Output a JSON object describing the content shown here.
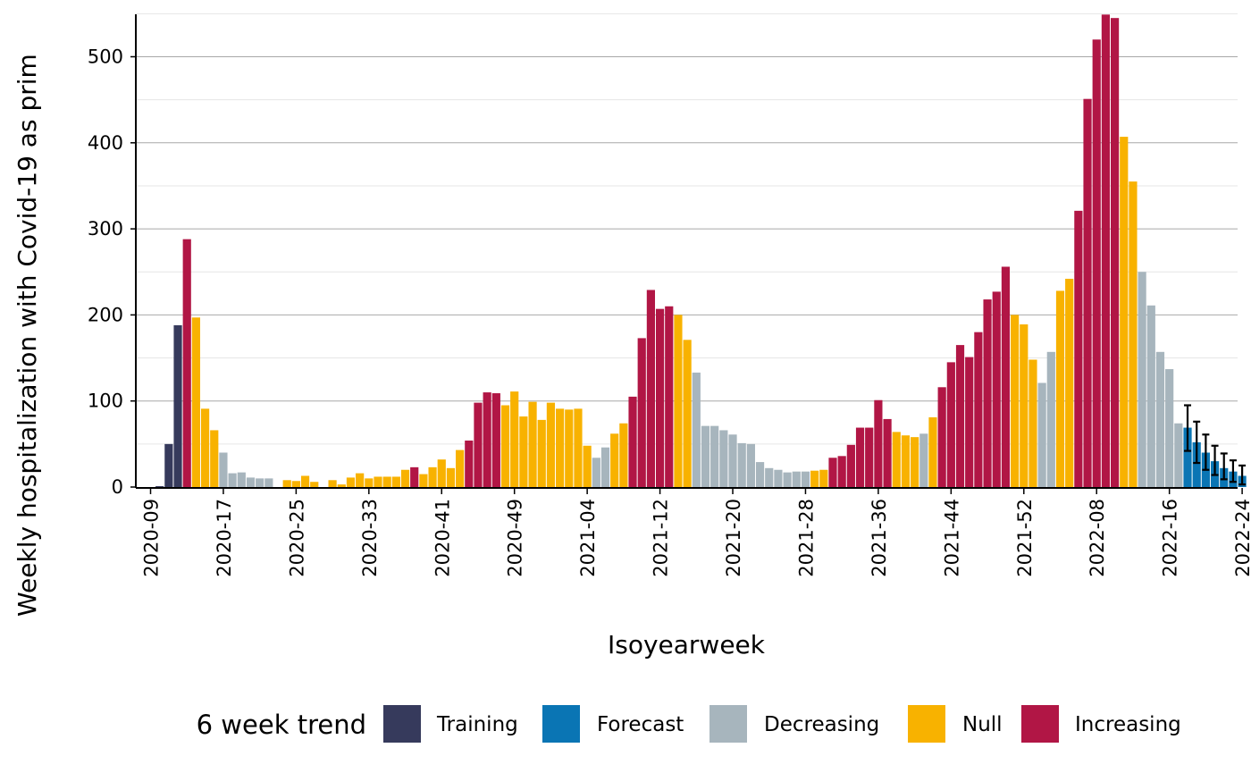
{
  "chart_data": {
    "type": "bar",
    "xlabel": "Isoyearweek",
    "ylabel": "Weekly hospitalization with Covid-19 as prim",
    "ylim": [
      0,
      550
    ],
    "yticks": [
      0,
      100,
      200,
      300,
      400,
      500
    ],
    "grid": true,
    "legend": {
      "title": "6 week trend",
      "placement": "bottom",
      "entries": [
        "Training",
        "Forecast",
        "Decreasing",
        "Null",
        "Increasing"
      ]
    },
    "colors": {
      "Training": "#363a5c",
      "Forecast": "#0a75b4",
      "Decreasing": "#a7b5bd",
      "Null": "#f8b200",
      "Increasing": "#b11645"
    },
    "x_tick_labels": [
      "2020-09",
      "2020-17",
      "2020-25",
      "2020-33",
      "2020-41",
      "2020-49",
      "2021-04",
      "2021-12",
      "2021-20",
      "2021-28",
      "2021-36",
      "2021-44",
      "2021-52",
      "2022-08",
      "2022-16",
      "2022-24"
    ],
    "weeks": [
      "2020-09",
      "2020-10",
      "2020-11",
      "2020-12",
      "2020-13",
      "2020-14",
      "2020-15",
      "2020-16",
      "2020-17",
      "2020-18",
      "2020-19",
      "2020-20",
      "2020-21",
      "2020-22",
      "2020-23",
      "2020-24",
      "2020-25",
      "2020-26",
      "2020-27",
      "2020-28",
      "2020-29",
      "2020-30",
      "2020-31",
      "2020-32",
      "2020-33",
      "2020-34",
      "2020-35",
      "2020-36",
      "2020-37",
      "2020-38",
      "2020-39",
      "2020-40",
      "2020-41",
      "2020-42",
      "2020-43",
      "2020-44",
      "2020-45",
      "2020-46",
      "2020-47",
      "2020-48",
      "2020-49",
      "2020-50",
      "2020-51",
      "2020-52",
      "2020-53",
      "2021-01",
      "2021-02",
      "2021-03",
      "2021-04",
      "2021-05",
      "2021-06",
      "2021-07",
      "2021-08",
      "2021-09",
      "2021-10",
      "2021-11",
      "2021-12",
      "2021-13",
      "2021-14",
      "2021-15",
      "2021-16",
      "2021-17",
      "2021-18",
      "2021-19",
      "2021-20",
      "2021-21",
      "2021-22",
      "2021-23",
      "2021-24",
      "2021-25",
      "2021-26",
      "2021-27",
      "2021-28",
      "2021-29",
      "2021-30",
      "2021-31",
      "2021-32",
      "2021-33",
      "2021-34",
      "2021-35",
      "2021-36",
      "2021-37",
      "2021-38",
      "2021-39",
      "2021-40",
      "2021-41",
      "2021-42",
      "2021-43",
      "2021-44",
      "2021-45",
      "2021-46",
      "2021-47",
      "2021-48",
      "2021-49",
      "2021-50",
      "2021-51",
      "2021-52",
      "2022-01",
      "2022-02",
      "2022-03",
      "2022-04",
      "2022-05",
      "2022-06",
      "2022-07",
      "2022-08",
      "2022-09",
      "2022-10",
      "2022-11",
      "2022-12",
      "2022-13",
      "2022-14",
      "2022-15",
      "2022-16",
      "2022-17",
      "2022-18",
      "2022-19",
      "2022-20",
      "2022-21",
      "2022-22",
      "2022-23",
      "2022-24"
    ],
    "values": [
      0,
      1,
      50,
      188,
      288,
      197,
      91,
      66,
      40,
      16,
      17,
      11,
      10,
      10,
      0,
      8,
      7,
      13,
      6,
      0,
      8,
      3,
      11,
      16,
      10,
      12,
      12,
      12,
      20,
      23,
      15,
      23,
      32,
      22,
      43,
      54,
      98,
      110,
      109,
      95,
      111,
      82,
      99,
      78,
      98,
      91,
      90,
      91,
      48,
      34,
      46,
      62,
      74,
      105,
      173,
      229,
      207,
      210,
      200,
      171,
      133,
      71,
      71,
      66,
      61,
      51,
      50,
      29,
      22,
      20,
      17,
      18,
      18,
      19,
      20,
      34,
      36,
      49,
      69,
      69,
      101,
      79,
      64,
      60,
      58,
      62,
      81,
      116,
      145,
      165,
      151,
      180,
      218,
      227,
      256,
      200,
      189,
      148,
      121,
      157,
      228,
      242,
      321,
      451,
      520,
      549,
      545,
      407,
      355,
      250,
      211,
      157,
      137,
      74,
      69,
      52,
      40,
      30,
      22,
      18,
      13
    ],
    "trend": [
      "Training",
      "Training",
      "Training",
      "Training",
      "Increasing",
      "Null",
      "Null",
      "Null",
      "Decreasing",
      "Decreasing",
      "Decreasing",
      "Decreasing",
      "Decreasing",
      "Decreasing",
      "Null",
      "Null",
      "Null",
      "Null",
      "Null",
      "Null",
      "Null",
      "Null",
      "Null",
      "Null",
      "Null",
      "Null",
      "Null",
      "Null",
      "Null",
      "Increasing",
      "Null",
      "Null",
      "Null",
      "Null",
      "Null",
      "Increasing",
      "Increasing",
      "Increasing",
      "Increasing",
      "Null",
      "Null",
      "Null",
      "Null",
      "Null",
      "Null",
      "Null",
      "Null",
      "Null",
      "Null",
      "Decreasing",
      "Decreasing",
      "Null",
      "Null",
      "Increasing",
      "Increasing",
      "Increasing",
      "Increasing",
      "Increasing",
      "Null",
      "Null",
      "Decreasing",
      "Decreasing",
      "Decreasing",
      "Decreasing",
      "Decreasing",
      "Decreasing",
      "Decreasing",
      "Decreasing",
      "Decreasing",
      "Decreasing",
      "Decreasing",
      "Decreasing",
      "Decreasing",
      "Null",
      "Null",
      "Increasing",
      "Increasing",
      "Increasing",
      "Increasing",
      "Increasing",
      "Increasing",
      "Increasing",
      "Null",
      "Null",
      "Null",
      "Decreasing",
      "Null",
      "Increasing",
      "Increasing",
      "Increasing",
      "Increasing",
      "Increasing",
      "Increasing",
      "Increasing",
      "Increasing",
      "Null",
      "Null",
      "Null",
      "Decreasing",
      "Decreasing",
      "Null",
      "Null",
      "Increasing",
      "Increasing",
      "Increasing",
      "Increasing",
      "Increasing",
      "Null",
      "Null",
      "Decreasing",
      "Decreasing",
      "Decreasing",
      "Decreasing",
      "Decreasing",
      "Forecast",
      "Forecast",
      "Forecast",
      "Forecast",
      "Forecast",
      "Forecast",
      "Forecast"
    ],
    "forecast_intervals": [
      {
        "week": "2022-18",
        "low": 42,
        "high": 95
      },
      {
        "week": "2022-19",
        "low": 28,
        "high": 76
      },
      {
        "week": "2022-20",
        "low": 20,
        "high": 61
      },
      {
        "week": "2022-21",
        "low": 14,
        "high": 48
      },
      {
        "week": "2022-22",
        "low": 9,
        "high": 39
      },
      {
        "week": "2022-23",
        "low": 6,
        "high": 31
      },
      {
        "week": "2022-24",
        "low": 3,
        "high": 25
      }
    ]
  }
}
